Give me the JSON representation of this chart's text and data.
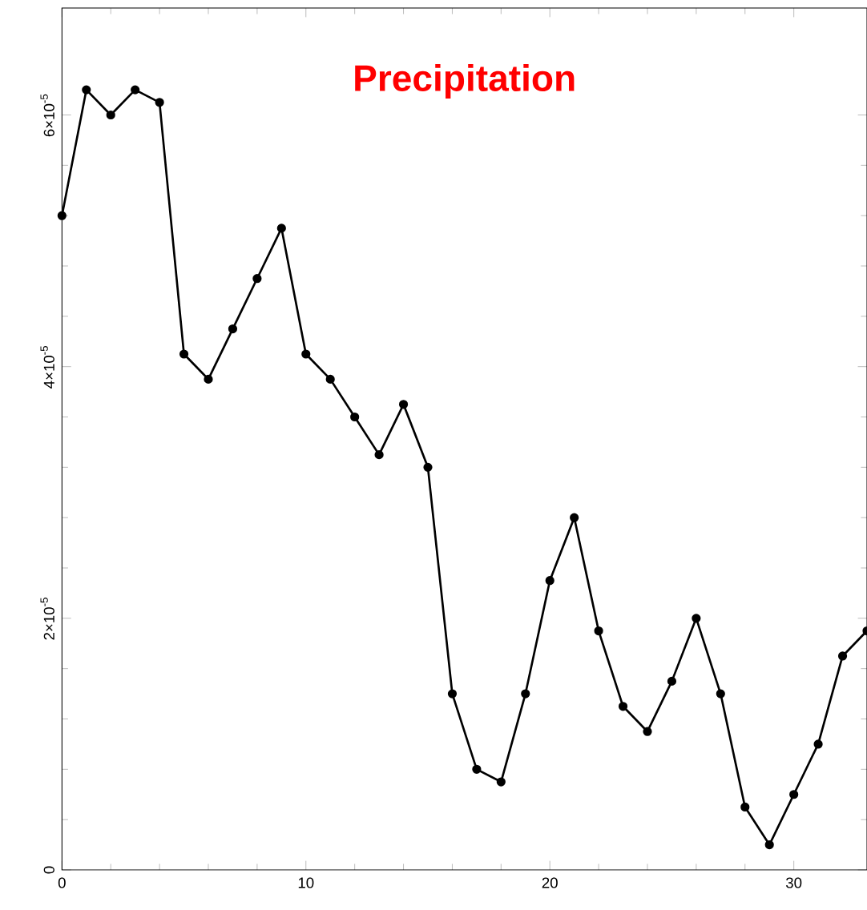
{
  "chart_data": {
    "type": "line",
    "title": "Precipitation",
    "x": [
      0,
      1,
      2,
      3,
      4,
      5,
      6,
      7,
      8,
      9,
      10,
      11,
      12,
      13,
      14,
      15,
      16,
      17,
      18,
      19,
      20,
      21,
      22,
      23,
      24,
      25,
      26,
      27,
      28,
      29,
      30,
      31,
      32,
      33
    ],
    "series": [
      {
        "color": "#000000",
        "values": [
          5.2e-05,
          6.2e-05,
          6e-05,
          6.2e-05,
          6.1e-05,
          4.1e-05,
          3.9e-05,
          4.3e-05,
          4.7e-05,
          5.1e-05,
          4.1e-05,
          3.9e-05,
          3.6e-05,
          3.3e-05,
          3.7e-05,
          3.2e-05,
          1.4e-05,
          8e-06,
          7e-06,
          1.4e-05,
          2.3e-05,
          2.8e-05,
          1.9e-05,
          1.3e-05,
          1.1e-05,
          1.5e-05,
          2e-05,
          1.4e-05,
          5e-06,
          2e-06,
          6e-06,
          1e-05,
          1.7e-05,
          1.9e-05
        ]
      }
    ],
    "xlim": [
      0,
      33
    ],
    "ylim": [
      0,
      6.85e-05
    ],
    "xticks": [
      0,
      10,
      20,
      30
    ],
    "yticks": [
      0,
      {
        "value": 2e-05,
        "label": "2×10$^{-5}$"
      },
      {
        "value": 4e-05,
        "label": "4×10$^{-5}$"
      },
      {
        "value": 6e-05,
        "label": "6×10$^{-5}$"
      }
    ],
    "marker": "circle",
    "line_style": "solid",
    "grid": false
  }
}
